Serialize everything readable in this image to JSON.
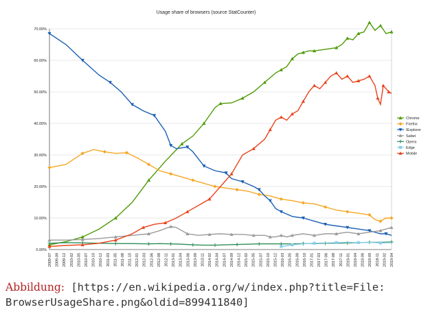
{
  "chart_data": {
    "type": "line",
    "title": "Usage share of browsers (source StatCounter)",
    "xlabel": "",
    "ylabel": "",
    "ylim": [
      0,
      70
    ],
    "y_ticks": [
      "0.00%",
      "10.00%",
      "20.00%",
      "30.00%",
      "40.00%",
      "50.00%",
      "60.00%",
      "70.00%"
    ],
    "grid": "horizontal",
    "legend_position": "right",
    "x_ticks": [
      "2009-07",
      "2009-09",
      "2009-12",
      "2010-02",
      "2010-05",
      "2010-07",
      "2010-10",
      "2010-12",
      "2011-03",
      "2011-05",
      "2011-08",
      "2011-10",
      "2012-01",
      "2012-03",
      "2012-06",
      "2012-08",
      "2012-11",
      "2013-01",
      "2013-04",
      "2013-06",
      "2013-09",
      "2013-11",
      "2014-02",
      "2014-04",
      "2014-07",
      "2014-09",
      "2014-12",
      "2015-02",
      "2015-05",
      "2015-07",
      "2015-10",
      "2015-12",
      "2016-03",
      "2016-05",
      "2016-08",
      "2016-10",
      "2017-01",
      "2017-03",
      "2017-06",
      "2017-08",
      "2017-11",
      "2018-01",
      "2018-04",
      "2018-06",
      "2018-09",
      "2018-11",
      "2019-02",
      "2019-04"
    ],
    "series": [
      {
        "name": "Chrome",
        "color": "#4e9a06",
        "marker": "triangle-up",
        "points": [
          [
            0,
            1.5
          ],
          [
            3,
            2.5
          ],
          [
            6,
            4.0
          ],
          [
            9,
            6.5
          ],
          [
            12,
            10
          ],
          [
            15,
            15
          ],
          [
            18,
            22
          ],
          [
            21,
            28
          ],
          [
            24,
            33.5
          ],
          [
            26,
            36
          ],
          [
            28,
            40
          ],
          [
            30,
            45
          ],
          [
            31,
            46.3
          ],
          [
            33,
            46.5
          ],
          [
            35,
            48
          ],
          [
            37,
            50
          ],
          [
            39,
            53
          ],
          [
            41,
            56
          ],
          [
            42,
            57
          ],
          [
            43,
            58
          ],
          [
            44,
            60.5
          ],
          [
            45,
            62
          ],
          [
            46,
            62.5
          ],
          [
            47,
            63
          ],
          [
            48,
            63
          ],
          [
            50,
            63.5
          ],
          [
            52,
            64
          ],
          [
            53,
            65
          ],
          [
            54,
            67
          ],
          [
            55,
            66.5
          ],
          [
            56,
            68.5
          ],
          [
            57,
            69
          ],
          [
            58,
            72
          ],
          [
            59,
            69.5
          ],
          [
            60,
            71
          ],
          [
            61,
            68.5
          ],
          [
            62,
            69
          ]
        ]
      },
      {
        "name": "Firefox",
        "color": "#f5a623",
        "marker": "diamond",
        "points": [
          [
            0,
            26
          ],
          [
            3,
            27
          ],
          [
            6,
            30.5
          ],
          [
            8,
            31.7
          ],
          [
            10,
            31
          ],
          [
            12,
            30.5
          ],
          [
            14,
            30.7
          ],
          [
            16,
            29
          ],
          [
            18,
            27
          ],
          [
            20,
            25
          ],
          [
            22,
            24
          ],
          [
            24,
            23
          ],
          [
            26,
            22
          ],
          [
            28,
            21
          ],
          [
            30,
            20
          ],
          [
            32,
            19.5
          ],
          [
            34,
            19
          ],
          [
            36,
            18.5
          ],
          [
            38,
            17.5
          ],
          [
            40,
            17
          ],
          [
            42,
            16
          ],
          [
            44,
            15.5
          ],
          [
            46,
            14.8
          ],
          [
            48,
            14.5
          ],
          [
            50,
            13.5
          ],
          [
            52,
            12.5
          ],
          [
            54,
            12
          ],
          [
            56,
            11.5
          ],
          [
            58,
            11
          ],
          [
            59,
            9.5
          ],
          [
            60,
            9
          ],
          [
            61,
            10
          ],
          [
            62,
            10
          ]
        ]
      },
      {
        "name": "IExplorer",
        "color": "#1a5fb4",
        "marker": "triangle-down",
        "points": [
          [
            0,
            68.5
          ],
          [
            3,
            65
          ],
          [
            6,
            60
          ],
          [
            9,
            55.3
          ],
          [
            11,
            53
          ],
          [
            13,
            50
          ],
          [
            15,
            46
          ],
          [
            17,
            44
          ],
          [
            19,
            42.5
          ],
          [
            21,
            37.5
          ],
          [
            22,
            33
          ],
          [
            23,
            32
          ],
          [
            25,
            32.5
          ],
          [
            26,
            31
          ],
          [
            28,
            26.5
          ],
          [
            30,
            25
          ],
          [
            32,
            24.3
          ],
          [
            33,
            22.5
          ],
          [
            35,
            21.5
          ],
          [
            37,
            20
          ],
          [
            38,
            19
          ],
          [
            39,
            17
          ],
          [
            40,
            15.5
          ],
          [
            41,
            13
          ],
          [
            42,
            12
          ],
          [
            44,
            10.5
          ],
          [
            46,
            10
          ],
          [
            48,
            9
          ],
          [
            50,
            8
          ],
          [
            52,
            7.5
          ],
          [
            54,
            7
          ],
          [
            56,
            6.5
          ],
          [
            58,
            6
          ],
          [
            60,
            5
          ],
          [
            61,
            5
          ],
          [
            62,
            4.5
          ]
        ]
      },
      {
        "name": "Safari",
        "color": "#9a9a9a",
        "marker": "triangle-up",
        "points": [
          [
            0,
            3
          ],
          [
            3,
            3
          ],
          [
            6,
            3.2
          ],
          [
            9,
            3.5
          ],
          [
            12,
            4
          ],
          [
            15,
            4.5
          ],
          [
            18,
            5
          ],
          [
            20,
            6
          ],
          [
            22,
            7.3
          ],
          [
            23,
            7
          ],
          [
            25,
            5
          ],
          [
            27,
            4.5
          ],
          [
            29,
            4.8
          ],
          [
            31,
            5
          ],
          [
            33,
            4.8
          ],
          [
            35,
            4.8
          ],
          [
            37,
            4.5
          ],
          [
            39,
            4.5
          ],
          [
            40,
            4
          ],
          [
            41,
            4
          ],
          [
            42,
            4.5
          ],
          [
            43,
            4
          ],
          [
            44,
            4.5
          ],
          [
            46,
            5
          ],
          [
            48,
            4.5
          ],
          [
            50,
            5
          ],
          [
            52,
            5
          ],
          [
            54,
            5.5
          ],
          [
            56,
            5
          ],
          [
            58,
            5.5
          ],
          [
            60,
            6
          ],
          [
            61,
            6.5
          ],
          [
            62,
            7
          ]
        ]
      },
      {
        "name": "Opera",
        "color": "#2e8b57",
        "marker": "plus",
        "points": [
          [
            0,
            2
          ],
          [
            3,
            2.2
          ],
          [
            6,
            2.1
          ],
          [
            9,
            2
          ],
          [
            12,
            1.9
          ],
          [
            15,
            1.9
          ],
          [
            18,
            1.8
          ],
          [
            20,
            1.9
          ],
          [
            22,
            1.8
          ],
          [
            24,
            1.7
          ],
          [
            26,
            1.5
          ],
          [
            28,
            1.4
          ],
          [
            30,
            1.4
          ],
          [
            32,
            1.5
          ],
          [
            34,
            1.6
          ],
          [
            36,
            1.7
          ],
          [
            38,
            1.8
          ],
          [
            40,
            1.8
          ],
          [
            42,
            1.8
          ],
          [
            44,
            1.8
          ],
          [
            46,
            1.9
          ],
          [
            48,
            1.9
          ],
          [
            50,
            2
          ],
          [
            52,
            2
          ],
          [
            54,
            2.1
          ],
          [
            56,
            2.2
          ],
          [
            58,
            2.3
          ],
          [
            60,
            2.3
          ],
          [
            62,
            2.4
          ]
        ]
      },
      {
        "name": "Edge",
        "color": "#87ceeb",
        "marker": "square",
        "points": [
          [
            42,
            1
          ],
          [
            43,
            1.2
          ],
          [
            44,
            1.5
          ],
          [
            46,
            1.8
          ],
          [
            48,
            2
          ],
          [
            50,
            2.1
          ],
          [
            52,
            2.2
          ],
          [
            54,
            2.3
          ],
          [
            56,
            2.2
          ],
          [
            58,
            2.3
          ],
          [
            60,
            2.1
          ],
          [
            62,
            2.2
          ]
        ]
      },
      {
        "name": "Mobile",
        "color": "#e8421a",
        "marker": "triangle-up",
        "points": [
          [
            0,
            1
          ],
          [
            3,
            1.3
          ],
          [
            6,
            1.5
          ],
          [
            9,
            2
          ],
          [
            12,
            3
          ],
          [
            15,
            5
          ],
          [
            17,
            7
          ],
          [
            19,
            8
          ],
          [
            21,
            8.5
          ],
          [
            23,
            10
          ],
          [
            25,
            12
          ],
          [
            27,
            14
          ],
          [
            29,
            16
          ],
          [
            31,
            20
          ],
          [
            33,
            24
          ],
          [
            35,
            30
          ],
          [
            37,
            32
          ],
          [
            39,
            35
          ],
          [
            40,
            38
          ],
          [
            41,
            41
          ],
          [
            42,
            42
          ],
          [
            43,
            41
          ],
          [
            44,
            43
          ],
          [
            45,
            44
          ],
          [
            46,
            47
          ],
          [
            47,
            50
          ],
          [
            48,
            52
          ],
          [
            49,
            51
          ],
          [
            50,
            53
          ],
          [
            51,
            55
          ],
          [
            52,
            56
          ],
          [
            53,
            54
          ],
          [
            54,
            55
          ],
          [
            55,
            53
          ],
          [
            56,
            53.5
          ],
          [
            57,
            54
          ],
          [
            58,
            55
          ],
          [
            59,
            52
          ],
          [
            59.5,
            48
          ],
          [
            60,
            46
          ],
          [
            60.5,
            52
          ],
          [
            61,
            51
          ],
          [
            61.5,
            50
          ],
          [
            62,
            49.5
          ]
        ]
      }
    ]
  },
  "caption": {
    "label": "Abbildung",
    "separator": ":",
    "text": " [https://en.wikipedia.org/w/index.php?title=File: BrowserUsageShare.png&oldid=899411840]"
  }
}
